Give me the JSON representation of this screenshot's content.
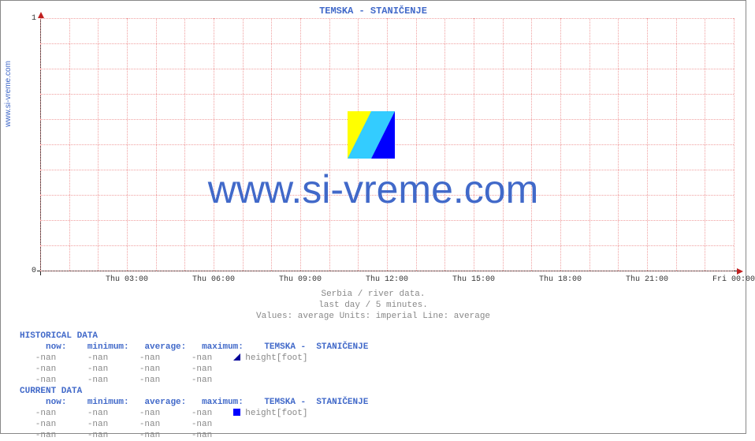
{
  "site_label": "www.si-vreme.com",
  "title": "TEMSKA -  STANIČENJE",
  "watermark_text": "www.si-vreme.com",
  "subtitle1": "Serbia / river data.",
  "subtitle2": "last day / 5 minutes.",
  "subtitle3": "Values: average  Units: imperial  Line: average",
  "chart": {
    "type": "line",
    "background_color": "#ffffff",
    "grid_color": "#f0a0a0",
    "axis_color": "#000000",
    "arrow_color": "#c02020",
    "ylim": [
      0,
      1
    ],
    "yticks": [
      0,
      1
    ],
    "ytick_labels": [
      "0",
      "1"
    ],
    "xtick_labels": [
      "Thu 03:00",
      "Thu 06:00",
      "Thu 09:00",
      "Thu 12:00",
      "Thu 15:00",
      "Thu 18:00",
      "Thu 21:00",
      "Fri 00:00"
    ],
    "n_subgrid_h": 10,
    "n_subgrid_v_per_major": 3,
    "data_empty": true,
    "title_color": "#4169c9",
    "label_fontsize": 10,
    "title_fontsize": 12
  },
  "watermark_colors": {
    "yellow": "#ffff00",
    "cyan": "#33ccff",
    "blue": "#0000ff"
  },
  "historical": {
    "header": "HISTORICAL DATA",
    "cols": [
      "now:",
      "minimum:",
      "average:",
      "maximum:"
    ],
    "series_label": "TEMSKA -  STANIČENJE",
    "unit_label": "height[foot]",
    "marker_color": "#000099",
    "marker_style": "half-triangle",
    "rows": [
      [
        "-nan",
        "-nan",
        "-nan",
        "-nan"
      ],
      [
        "-nan",
        "-nan",
        "-nan",
        "-nan"
      ],
      [
        "-nan",
        "-nan",
        "-nan",
        "-nan"
      ]
    ]
  },
  "current": {
    "header": "CURRENT DATA",
    "cols": [
      "now:",
      "minimum:",
      "average:",
      "maximum:"
    ],
    "series_label": "TEMSKA -  STANIČENJE",
    "unit_label": "height[foot]",
    "marker_color": "#0000ff",
    "marker_style": "square",
    "rows": [
      [
        "-nan",
        "-nan",
        "-nan",
        "-nan"
      ],
      [
        "-nan",
        "-nan",
        "-nan",
        "-nan"
      ],
      [
        "-nan",
        "-nan",
        "-nan",
        "-nan"
      ]
    ]
  },
  "colors": {
    "link": "#4169c9",
    "muted": "#888888",
    "text": "#333333"
  }
}
